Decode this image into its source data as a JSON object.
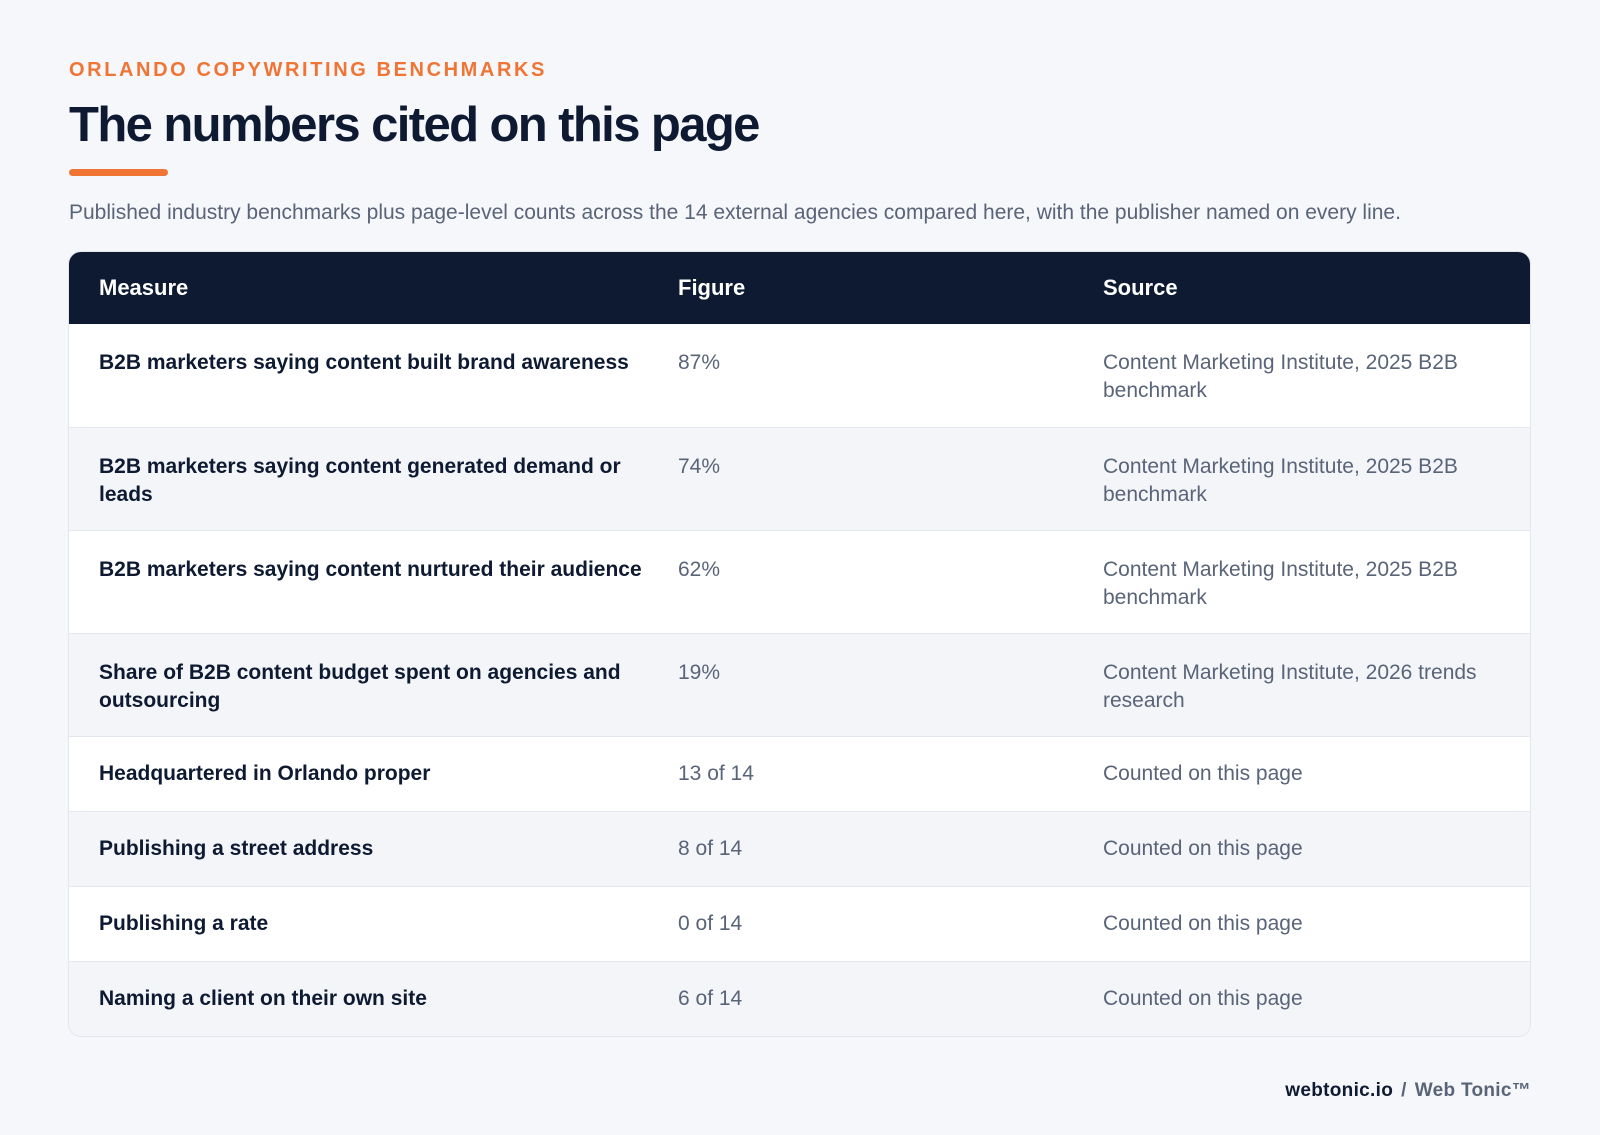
{
  "header": {
    "eyebrow": "ORLANDO COPYWRITING BENCHMARKS",
    "title": "The numbers cited on this page",
    "intro": "Published industry benchmarks plus page-level counts across the 14 external agencies compared here, with the publisher named on every line."
  },
  "table": {
    "columns": [
      "Measure",
      "Figure",
      "Source"
    ],
    "rows": [
      {
        "measure": "B2B marketers saying content built brand awareness",
        "figure": "87%",
        "source": "Content Marketing Institute, 2025 B2B benchmark"
      },
      {
        "measure": "B2B marketers saying content generated demand or leads",
        "figure": "74%",
        "source": "Content Marketing Institute, 2025 B2B benchmark"
      },
      {
        "measure": "B2B marketers saying content nurtured their audience",
        "figure": "62%",
        "source": "Content Marketing Institute, 2025 B2B benchmark"
      },
      {
        "measure": "Share of B2B content budget spent on agencies and outsourcing",
        "figure": "19%",
        "source": "Content Marketing Institute, 2026 trends research"
      },
      {
        "measure": "Headquartered in Orlando proper",
        "figure": "13 of 14",
        "source": "Counted on this page"
      },
      {
        "measure": "Publishing a street address",
        "figure": "8 of 14",
        "source": "Counted on this page"
      },
      {
        "measure": "Publishing a rate",
        "figure": "0 of 14",
        "source": "Counted on this page"
      },
      {
        "measure": "Naming a client on their own site",
        "figure": "6 of 14",
        "source": "Counted on this page"
      }
    ]
  },
  "footer": {
    "domain": "webtonic.io",
    "separator": "/",
    "brand": "Web Tonic™"
  },
  "colors": {
    "accent": "#f07535",
    "navy": "#0e1a32",
    "muted": "#5a6478",
    "background": "#f5f7fa"
  }
}
